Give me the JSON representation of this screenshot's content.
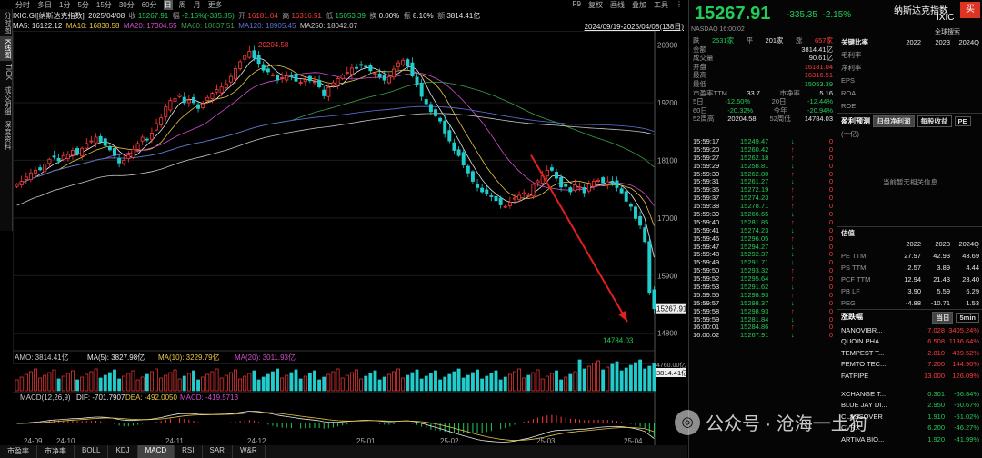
{
  "left_tabs": [
    "分时图",
    "K线图",
    "TICK",
    "成交明细",
    "深度资料"
  ],
  "period_tabs": [
    "分时",
    "多日",
    "1分",
    "5分",
    "15分",
    "30分",
    "60分",
    "日",
    "周",
    "月",
    "更多"
  ],
  "active_period": "日",
  "top_right": [
    "F9",
    "复权",
    "画线",
    "叠加",
    "工具",
    "⋮"
  ],
  "info1": {
    "name": "IXIC.GI[纳斯达克指数]",
    "date": "2025/04/08",
    "close_l": "收",
    "close": "15267.91",
    "amp_l": "幅",
    "amp": "-2.15%(-335.35)",
    "open_l": "开",
    "open": "16181.04",
    "high_l": "高",
    "high": "16316.51",
    "low_l": "低",
    "low": "15053.39",
    "chg_l": "换",
    "chg": "0.00%",
    "zf_l": "振",
    "zf": "8.10%",
    "amt_l": "额",
    "amt": "3814.41亿"
  },
  "info2": {
    "ma5": "MA5: 16122.12",
    "ma10": "MA10: 16838.58",
    "ma20": "MA20: 17304.55",
    "ma60": "MA60: 18637.51",
    "ma120": "MA120: 18905.45",
    "ma250": "MA250: 18042.07",
    "range": "2024/09/19-2025/04/08(138日)"
  },
  "chart_data": {
    "type": "candlestick",
    "x_ticks": [
      "24-09",
      "24-10",
      "24-11",
      "24-12",
      "25-01",
      "25-02",
      "25-03",
      "25-04"
    ],
    "y_ticks": [
      14800,
      15900,
      17000,
      18100,
      19200,
      20300
    ],
    "ylim": [
      14500,
      20500
    ],
    "current_price": "15267.91",
    "high_label": "20204.58",
    "low_label": "14784.03",
    "close_series": [
      17640,
      17700,
      17780,
      17860,
      17910,
      17920,
      18030,
      18120,
      18160,
      18090,
      18190,
      18210,
      18290,
      18230,
      18330,
      18420,
      18470,
      18540,
      18450,
      18380,
      18300,
      18190,
      18050,
      18100,
      18200,
      18310,
      18420,
      18540,
      18490,
      18620,
      18800,
      18910,
      19120,
      19240,
      19280,
      19350,
      19200,
      19250,
      19200,
      19090,
      19180,
      19300,
      19380,
      19450,
      19500,
      19560,
      19700,
      19850,
      19980,
      20100,
      20180,
      20050,
      19950,
      19820,
      19790,
      19730,
      19630,
      19680,
      19710,
      19700,
      19610,
      19590,
      19640,
      19620,
      19600,
      19500,
      19330,
      19490,
      19580,
      19660,
      19730,
      19780,
      19860,
      19870,
      19920,
      19890,
      19810,
      19760,
      19690,
      19630,
      19690,
      19840,
      19960,
      20010,
      19900,
      19710,
      19550,
      19320,
      19180,
      19030,
      18950,
      18850,
      18620,
      18470,
      18290,
      18190,
      18010,
      17860,
      17700,
      17580,
      17500,
      17470,
      17410,
      17330,
      17250,
      17220,
      17300,
      17380,
      17430,
      17480,
      17430,
      17640,
      17710,
      17800,
      17910,
      17910,
      17760,
      17590,
      17600,
      17500,
      17630,
      17590,
      17480,
      17650,
      17700,
      17720,
      17670,
      17690,
      17650,
      17580,
      17480,
      17320,
      17220,
      16990,
      16860,
      16550,
      15580,
      15268
    ],
    "ma_legend": [
      "MA5",
      "MA10",
      "MA20",
      "MA60",
      "MA120",
      "MA250"
    ],
    "ma_colors": [
      "#e8e8e8",
      "#e8c840",
      "#d04fd0",
      "#3aa04a",
      "#6070d8",
      "#c8c8c8"
    ]
  },
  "amo": {
    "label": "AMO: 3814.41亿",
    "ma5": "MA(5): 3827.98亿",
    "ma10": "MA(10): 3229.79亿",
    "ma20": "MA(20): 3011.93亿",
    "tick_top": "4760.00亿",
    "tick_cur": "3814.41亿"
  },
  "macd": {
    "label": "MACD(12,26,9)",
    "dif": "DIF: -701.7907",
    "dea": "DEA: -492.0050",
    "macd": "MACD: -419.5713"
  },
  "bottom_tabs": [
    "市盈率",
    "市净率",
    "BOLL",
    "KDJ",
    "MACD",
    "RSI",
    "SAR",
    "W&R"
  ],
  "active_bottom": "MACD",
  "quote": {
    "price": "15267.91",
    "chg": "-335.35",
    "pct": "-2.15%",
    "name": "纳斯达克指数",
    "code": "IXIC",
    "buy": "买",
    "exchange": "NASDAQ",
    "time": "16:00:02",
    "search": "全球搜索"
  },
  "stats": [
    {
      "l": "跌",
      "v": "2531家",
      "l2": "平",
      "v2": "201家",
      "l3": "涨",
      "v3": "657家"
    },
    {
      "l": "金额",
      "v": "3814.41亿",
      "c": "white"
    },
    {
      "l": "成交量",
      "v": "90.61亿",
      "c": "white"
    },
    {
      "l": "开盘",
      "v": "16181.04",
      "c": "red"
    },
    {
      "l": "最高",
      "v": "16316.51",
      "c": "red"
    },
    {
      "l": "最低",
      "v": "15053.39",
      "c": "green"
    },
    {
      "l": "市盈率TTM",
      "v": "33.7",
      "l2": "市净率",
      "v2": "5.16"
    },
    {
      "l": "5日",
      "v": "-12.50%",
      "l2": "20日",
      "v2": "-12.44%",
      "c": "green"
    },
    {
      "l": "60日",
      "v": "-20.32%",
      "l2": "今年",
      "v2": "-20.94%",
      "c": "green"
    },
    {
      "l": "52周高",
      "v": "20204.58",
      "l2": "52周低",
      "v2": "14784.03"
    }
  ],
  "ticks": [
    [
      "15:59:17",
      "15249.47",
      "↓",
      "0"
    ],
    [
      "15:59:20",
      "15260.42",
      "↑",
      "0"
    ],
    [
      "15:59:27",
      "15262.18",
      "↑",
      "0"
    ],
    [
      "15:59:29",
      "15258.81",
      "↓",
      "0"
    ],
    [
      "15:59:30",
      "15262.80",
      "↑",
      "0"
    ],
    [
      "15:59:31",
      "15261.27",
      "↓",
      "0"
    ],
    [
      "15:59:35",
      "15272.19",
      "↑",
      "0"
    ],
    [
      "15:59:37",
      "15274.23",
      "↑",
      "0"
    ],
    [
      "15:59:38",
      "15278.71",
      "↑",
      "0"
    ],
    [
      "15:59:39",
      "15266.65",
      "↓",
      "0"
    ],
    [
      "15:59:40",
      "15281.85",
      "↑",
      "0"
    ],
    [
      "15:59:41",
      "15274.23",
      "↓",
      "0"
    ],
    [
      "15:59:46",
      "15296.05",
      "↑",
      "0"
    ],
    [
      "15:59:47",
      "15294.27",
      "↓",
      "0"
    ],
    [
      "15:59:48",
      "15292.37",
      "↓",
      "0"
    ],
    [
      "15:59:49",
      "15291.71",
      "↓",
      "0"
    ],
    [
      "15:59:50",
      "15293.32",
      "↑",
      "0"
    ],
    [
      "15:59:52",
      "15295.64",
      "↑",
      "0"
    ],
    [
      "15:59:53",
      "15291.62",
      "↓",
      "0"
    ],
    [
      "15:59:55",
      "15298.93",
      "↑",
      "0"
    ],
    [
      "15:59:57",
      "15298.37",
      "↓",
      "0"
    ],
    [
      "15:59:58",
      "15298.93",
      "↑",
      "0"
    ],
    [
      "15:59:59",
      "15281.84",
      "↓",
      "0"
    ],
    [
      "16:00:01",
      "15284.86",
      "↑",
      "0"
    ],
    [
      "16:00:02",
      "15267.91",
      "↓",
      "0"
    ]
  ],
  "fin": {
    "title": "关键比率",
    "years": [
      "2022",
      "2023",
      "2024Q"
    ],
    "rows": [
      [
        "毛利率",
        "",
        "",
        ""
      ],
      [
        "净利率",
        "",
        "",
        ""
      ],
      [
        "EPS",
        "",
        "",
        ""
      ],
      [
        "ROA",
        "",
        "",
        ""
      ],
      [
        "ROE",
        "",
        "",
        ""
      ]
    ],
    "forecast_title": "盈利预测",
    "forecast_tabs": [
      "归母净利润",
      "每股收益",
      "PE"
    ],
    "forecast_unit": "(十亿)",
    "forecast_empty": "当前暂无相关信息",
    "val_title": "估值",
    "val_years": [
      "2022",
      "2023",
      "2024Q"
    ],
    "val_rows": [
      [
        "PE TTM",
        "27.97",
        "42.93",
        "43.69"
      ],
      [
        "PS TTM",
        "2.57",
        "3.89",
        "4.44"
      ],
      [
        "PCF TTM",
        "12.94",
        "21.43",
        "23.40"
      ],
      [
        "PB LF",
        "3.90",
        "5.59",
        "6.29"
      ],
      [
        "PEG",
        "-4.88",
        "-10.71",
        "1.53"
      ]
    ],
    "gain_title": "涨跌幅",
    "gain_tabs": [
      "当日",
      "5min"
    ],
    "gain_rows": [
      [
        "NANOVIBR...",
        "7.028",
        "3405.24%",
        "red"
      ],
      [
        "QUOIN PHA...",
        "6.508",
        "1186.64%",
        "red"
      ],
      [
        "TEMPEST T...",
        "2.810",
        "409.52%",
        "red"
      ],
      [
        "FEMTO TEC...",
        "7.200",
        "144.90%",
        "red"
      ],
      [
        "FATPIPE",
        "13.000",
        "126.09%",
        "red"
      ],
      [
        "XCHANGE T...",
        "0.301",
        "-66.84%",
        "green"
      ],
      [
        "BLUE JAY DI...",
        "2.950",
        "-60.67%",
        "green"
      ],
      [
        "CLASSOVER",
        "1.910",
        "-51.02%",
        "green"
      ],
      [
        "CVRX",
        "6.200",
        "-46.27%",
        "green"
      ],
      [
        "ARTIVA BIO...",
        "1.920",
        "-41.99%",
        "green"
      ]
    ]
  },
  "watermark": "公众号 · 沧海一土狗"
}
